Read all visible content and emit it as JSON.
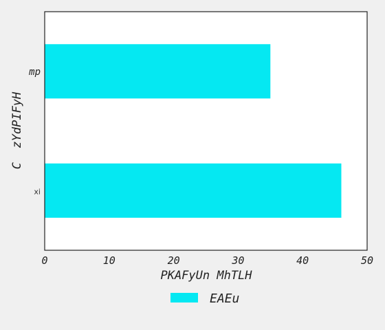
{
  "chart_data": {
    "type": "bar",
    "orientation": "horizontal",
    "title": "",
    "xlabel": "PKAFyUn MhTLH",
    "ylabel": "C  zYdPIFyH",
    "categories": [
      "mp",
      "xi"
    ],
    "series": [
      {
        "name": "EAEu",
        "values": [
          35,
          46
        ],
        "color": "#05e8f2"
      }
    ],
    "xlim": [
      0,
      50
    ],
    "xticks": [
      "0",
      "10",
      "20",
      "30",
      "40",
      "50"
    ],
    "grid": false,
    "legend": {
      "position": "bottom-center",
      "entries": [
        "EAEu"
      ]
    },
    "colors": {
      "background": "#f0f0f0",
      "plot_background": "#ffffff",
      "axis": "#222222"
    }
  }
}
